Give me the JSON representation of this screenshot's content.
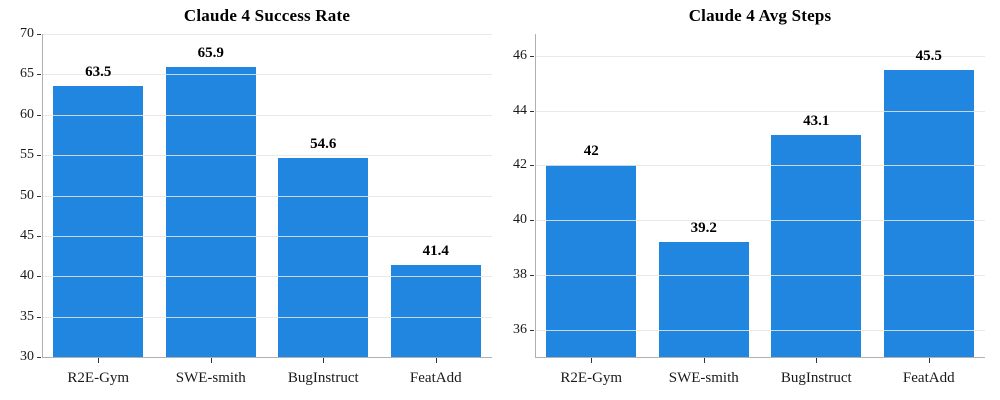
{
  "figure": {
    "background": "#ffffff"
  },
  "style": {
    "bar_color": "#2186e0",
    "grid_color": "rgba(229,229,229,0.85)",
    "spine_color": "#b0b0b0",
    "tick_mark_color": "#333333",
    "text_color": "#1a1a1a"
  },
  "chart_data": [
    {
      "type": "bar",
      "title": "Claude 4 Success Rate",
      "categories": [
        "R2E-Gym",
        "SWE-smith",
        "BugInstruct",
        "FeatAdd"
      ],
      "values": [
        63.5,
        65.9,
        54.6,
        41.4
      ],
      "value_labels": [
        "63.5",
        "65.9",
        "54.6",
        "41.4"
      ],
      "yticks": [
        30,
        35,
        40,
        45,
        50,
        55,
        60,
        65,
        70
      ],
      "ylim": [
        30,
        70
      ],
      "xlabel": "",
      "ylabel": "",
      "grid": true,
      "legend": null
    },
    {
      "type": "bar",
      "title": "Claude 4 Avg Steps",
      "categories": [
        "R2E-Gym",
        "SWE-smith",
        "BugInstruct",
        "FeatAdd"
      ],
      "values": [
        42,
        39.2,
        43.1,
        45.5
      ],
      "value_labels": [
        "42",
        "39.2",
        "43.1",
        "45.5"
      ],
      "yticks": [
        36,
        38,
        40,
        42,
        44,
        46
      ],
      "ylim": [
        35,
        46.8
      ],
      "xlabel": "",
      "ylabel": "",
      "grid": true,
      "legend": null
    }
  ]
}
